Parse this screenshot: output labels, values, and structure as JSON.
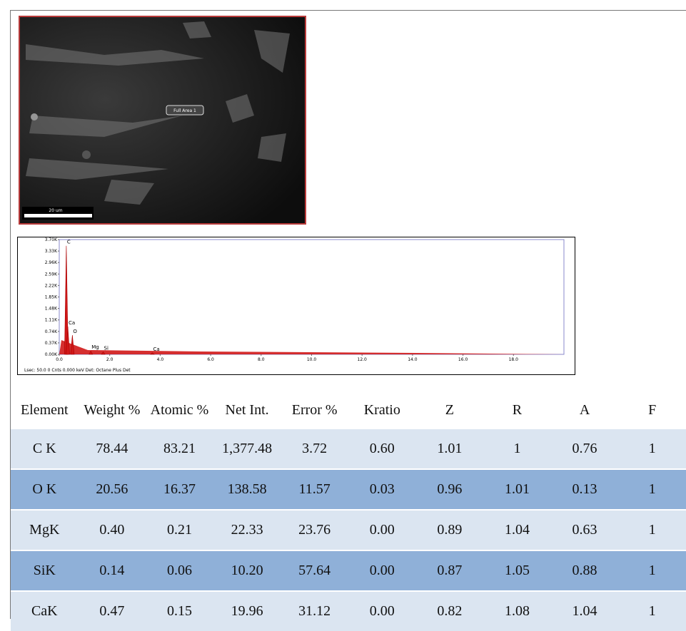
{
  "figure": {
    "sem_image": {
      "area_label": "Full Area 1",
      "scale_bar": "20 um"
    },
    "spectrum": {
      "xlim": [
        0,
        20
      ],
      "ylim": [
        0,
        3700
      ],
      "xticks": [
        {
          "value": 0,
          "label": "0.0"
        },
        {
          "value": 2,
          "label": "2.0"
        },
        {
          "value": 4,
          "label": "4.0"
        },
        {
          "value": 6,
          "label": "6.0"
        },
        {
          "value": 8,
          "label": "8.0"
        },
        {
          "value": 10,
          "label": "10.0"
        },
        {
          "value": 12,
          "label": "12.0"
        },
        {
          "value": 14,
          "label": "14.0"
        },
        {
          "value": 16,
          "label": "16.0"
        },
        {
          "value": 18,
          "label": "18.0"
        }
      ],
      "yticks": [
        {
          "value": 0,
          "label": "0.00K"
        },
        {
          "value": 370,
          "label": "0.37K"
        },
        {
          "value": 740,
          "label": "0.74K"
        },
        {
          "value": 1110,
          "label": "1.11K"
        },
        {
          "value": 1480,
          "label": "1.48K"
        },
        {
          "value": 1850,
          "label": "1.85K"
        },
        {
          "value": 2220,
          "label": "2.22K"
        },
        {
          "value": 2590,
          "label": "2.59K"
        },
        {
          "value": 2960,
          "label": "2.96K"
        },
        {
          "value": 3330,
          "label": "3.33K"
        },
        {
          "value": 3700,
          "label": "3.70K"
        }
      ],
      "peaks": [
        {
          "label": "C",
          "energy": 0.28,
          "counts": 3500
        },
        {
          "label": "Ca",
          "energy": 0.34,
          "counts": 900
        },
        {
          "label": "O",
          "energy": 0.52,
          "counts": 620
        },
        {
          "label": "Mg",
          "energy": 1.25,
          "counts": 110
        },
        {
          "label": "Si",
          "energy": 1.74,
          "counts": 80
        },
        {
          "label": "Ca",
          "energy": 3.69,
          "counts": 50
        }
      ],
      "footer": "Lsec: 50.0 0 Cnts 0.000 keV Det: Octane Plus Det"
    }
  },
  "table": {
    "header": [
      "Element",
      "Weight %",
      "Atomic %",
      "Net Int.",
      "Error %",
      "Kratio",
      "Z",
      "R",
      "A",
      "F"
    ],
    "rows": [
      [
        "C K",
        "78.44",
        "83.21",
        "1,377.48",
        "3.72",
        "0.60",
        "1.01",
        "1",
        "0.76",
        "1"
      ],
      [
        "O K",
        "20.56",
        "16.37",
        "138.58",
        "11.57",
        "0.03",
        "0.96",
        "1.01",
        "0.13",
        "1"
      ],
      [
        "MgK",
        "0.40",
        "0.21",
        "22.33",
        "23.76",
        "0.00",
        "0.89",
        "1.04",
        "0.63",
        "1"
      ],
      [
        "SiK",
        "0.14",
        "0.06",
        "10.20",
        "57.64",
        "0.00",
        "0.87",
        "1.05",
        "0.88",
        "1"
      ],
      [
        "CaK",
        "0.47",
        "0.15",
        "19.96",
        "31.12",
        "0.00",
        "0.82",
        "1.08",
        "1.04",
        "1"
      ]
    ]
  }
}
